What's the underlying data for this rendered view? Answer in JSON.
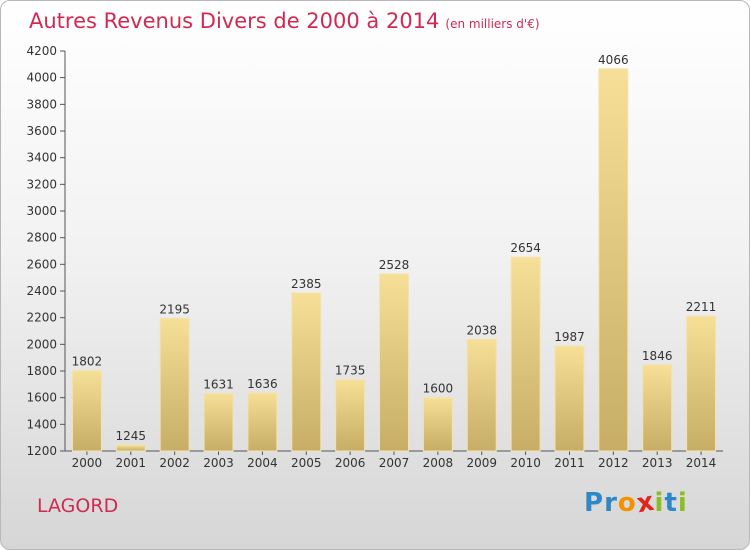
{
  "title": "Autres Revenus Divers de 2000 à 2014",
  "unit_note": "(en milliers d'€)",
  "commune": "LAGORD",
  "brand": {
    "letters": [
      "P",
      "r",
      "o",
      "x",
      "i",
      "t",
      "i"
    ],
    "colors": [
      "#2e88c8",
      "#2e88c8",
      "#f39200",
      "#e0261a",
      "#8cbe22",
      "#2e88c8",
      "#8cbe22"
    ]
  },
  "colors": {
    "accent": "#d12a52",
    "bar_top": "#f6df96",
    "bar_bottom": "#c7ad66",
    "axis": "#555555"
  },
  "chart_data": {
    "type": "bar",
    "title": "Autres Revenus Divers de 2000 à 2014",
    "subtitle": "(en milliers d'€)",
    "xlabel": "",
    "ylabel": "",
    "categories": [
      "2000",
      "2001",
      "2002",
      "2003",
      "2004",
      "2005",
      "2006",
      "2007",
      "2008",
      "2009",
      "2010",
      "2011",
      "2012",
      "2013",
      "2014"
    ],
    "values": [
      1802,
      1245,
      2195,
      1631,
      1636,
      2385,
      1735,
      2528,
      1600,
      2038,
      2654,
      1987,
      4066,
      1846,
      2211
    ],
    "ylim": [
      1200,
      4200
    ],
    "yticks": [
      1200,
      1400,
      1600,
      1800,
      2000,
      2200,
      2400,
      2600,
      2800,
      3000,
      3200,
      3400,
      3600,
      3800,
      4000,
      4200
    ],
    "grid": false,
    "data_labels": true
  }
}
